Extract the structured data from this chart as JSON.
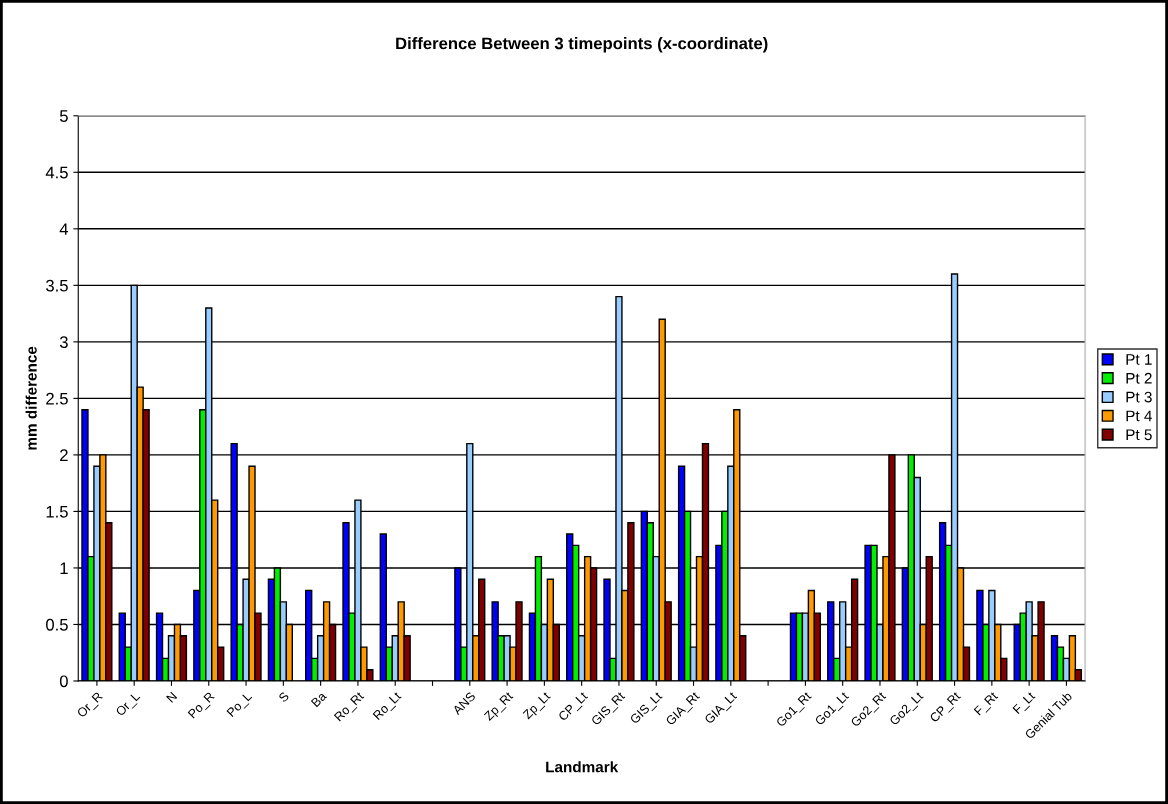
{
  "chart_data": {
    "type": "bar",
    "title": "Difference Between 3 timepoints (x-coordinate)",
    "xlabel": "Landmark",
    "ylabel": "mm difference",
    "categories": [
      "Or_R",
      "Or_L",
      "N",
      "Po_R",
      "Po_L",
      "S",
      "Ba",
      "Ro_Rt",
      "Ro_Lt",
      null,
      "ANS",
      "Zp_Rt",
      "Zp_Lt",
      "CP_Lt",
      "GIS_Rt",
      "GIS_Lt",
      "GIA_Rt",
      "GIA_Lt",
      null,
      "Go1_Rt",
      "Go1_Lt",
      "Go2_Rt",
      "Go2_Lt",
      "CP_Rt",
      "F_Rt",
      "F_Lt",
      "Genial Tub"
    ],
    "series": [
      {
        "name": "Pt 1",
        "color": "#0000ff",
        "values": [
          2.4,
          0.6,
          0.6,
          0.8,
          2.1,
          0.9,
          0.8,
          1.4,
          1.3,
          null,
          1.0,
          0.7,
          0.6,
          1.3,
          0.9,
          1.5,
          1.9,
          1.2,
          null,
          0.6,
          0.7,
          1.2,
          1.0,
          1.4,
          0.8,
          0.5,
          0.4
        ]
      },
      {
        "name": "Pt 2",
        "color": "#00ee00",
        "values": [
          1.1,
          0.3,
          0.2,
          2.4,
          0.5,
          1.0,
          0.2,
          0.6,
          0.3,
          null,
          0.3,
          0.4,
          1.1,
          1.2,
          0.2,
          1.4,
          1.5,
          1.5,
          null,
          0.6,
          0.2,
          1.2,
          2.0,
          1.2,
          0.5,
          0.6,
          0.3
        ]
      },
      {
        "name": "Pt 3",
        "color": "#99ccff",
        "values": [
          1.9,
          3.5,
          0.4,
          3.3,
          0.9,
          0.7,
          0.4,
          1.6,
          0.4,
          null,
          2.1,
          0.4,
          0.5,
          0.4,
          3.4,
          1.1,
          0.3,
          1.9,
          null,
          0.6,
          0.7,
          0.5,
          1.8,
          3.6,
          0.8,
          0.7,
          0.2
        ]
      },
      {
        "name": "Pt 4",
        "color": "#ff9900",
        "values": [
          2.0,
          2.6,
          0.5,
          1.6,
          1.9,
          0.5,
          0.7,
          0.3,
          0.7,
          null,
          0.4,
          0.3,
          0.9,
          1.1,
          0.8,
          3.2,
          1.1,
          2.4,
          null,
          0.8,
          0.3,
          1.1,
          0.5,
          1.0,
          0.5,
          0.4,
          0.4
        ]
      },
      {
        "name": "Pt 5",
        "color": "#800000",
        "values": [
          1.4,
          2.4,
          0.4,
          0.3,
          0.6,
          null,
          0.5,
          0.1,
          0.4,
          null,
          0.9,
          0.7,
          0.5,
          1.0,
          1.4,
          0.7,
          2.1,
          0.4,
          null,
          0.6,
          0.9,
          2.0,
          1.1,
          0.3,
          0.2,
          0.7,
          0.1
        ]
      }
    ],
    "ylim": [
      0,
      5
    ],
    "yticks": [
      0,
      0.5,
      1,
      1.5,
      2,
      2.5,
      3,
      3.5,
      4,
      4.5,
      5
    ],
    "grid": "y",
    "legend": "right"
  }
}
